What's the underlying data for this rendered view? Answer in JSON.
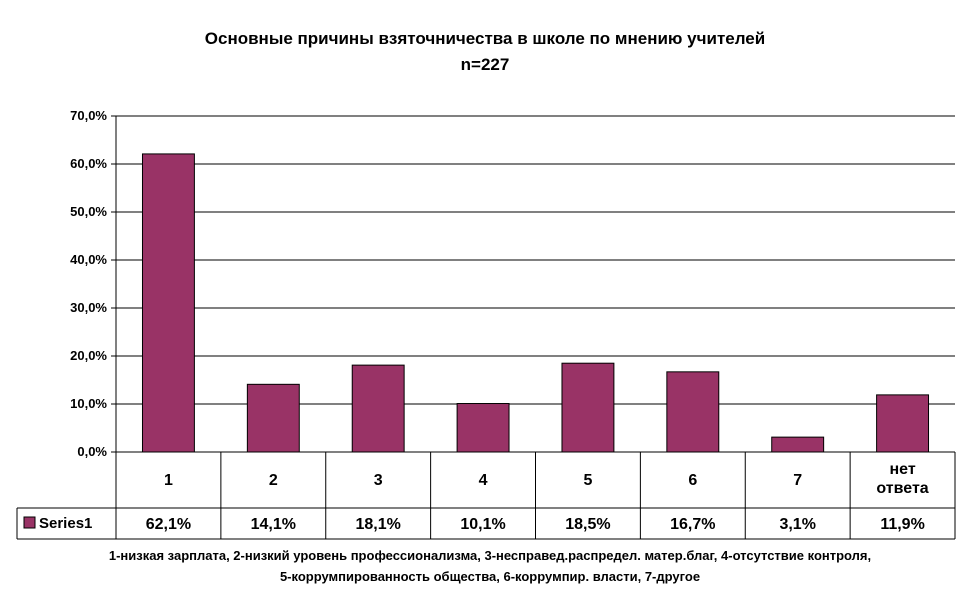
{
  "chart_data": {
    "type": "bar",
    "title": "Основные причины взяточничества в школе по мнению учителей",
    "subtitle": "n=227",
    "categories": [
      "1",
      "2",
      "3",
      "4",
      "5",
      "6",
      "7",
      "нет ответа"
    ],
    "series": [
      {
        "name": "Series1",
        "values": [
          62.1,
          14.1,
          18.1,
          10.1,
          18.5,
          16.7,
          3.1,
          11.9
        ],
        "labels": [
          "62,1%",
          "14,1%",
          "18,1%",
          "10,1%",
          "18,5%",
          "16,7%",
          "3,1%",
          "11,9%"
        ],
        "color": "#993366"
      }
    ],
    "ylim": [
      0,
      70
    ],
    "yticks": [
      "0,0%",
      "10,0%",
      "20,0%",
      "30,0%",
      "40,0%",
      "50,0%",
      "60,0%",
      "70,0%"
    ],
    "grid": true,
    "legend": "data-table",
    "xlabel": "",
    "ylabel": ""
  },
  "footnote": {
    "line1": "1-низкая зарплата, 2-низкий уровень профессионализма, 3-несправед.распредел. матер.благ, 4-отсутствие контроля,",
    "line2": "5-коррумпированность общества, 6-коррумпир. власти, 7-другое"
  }
}
